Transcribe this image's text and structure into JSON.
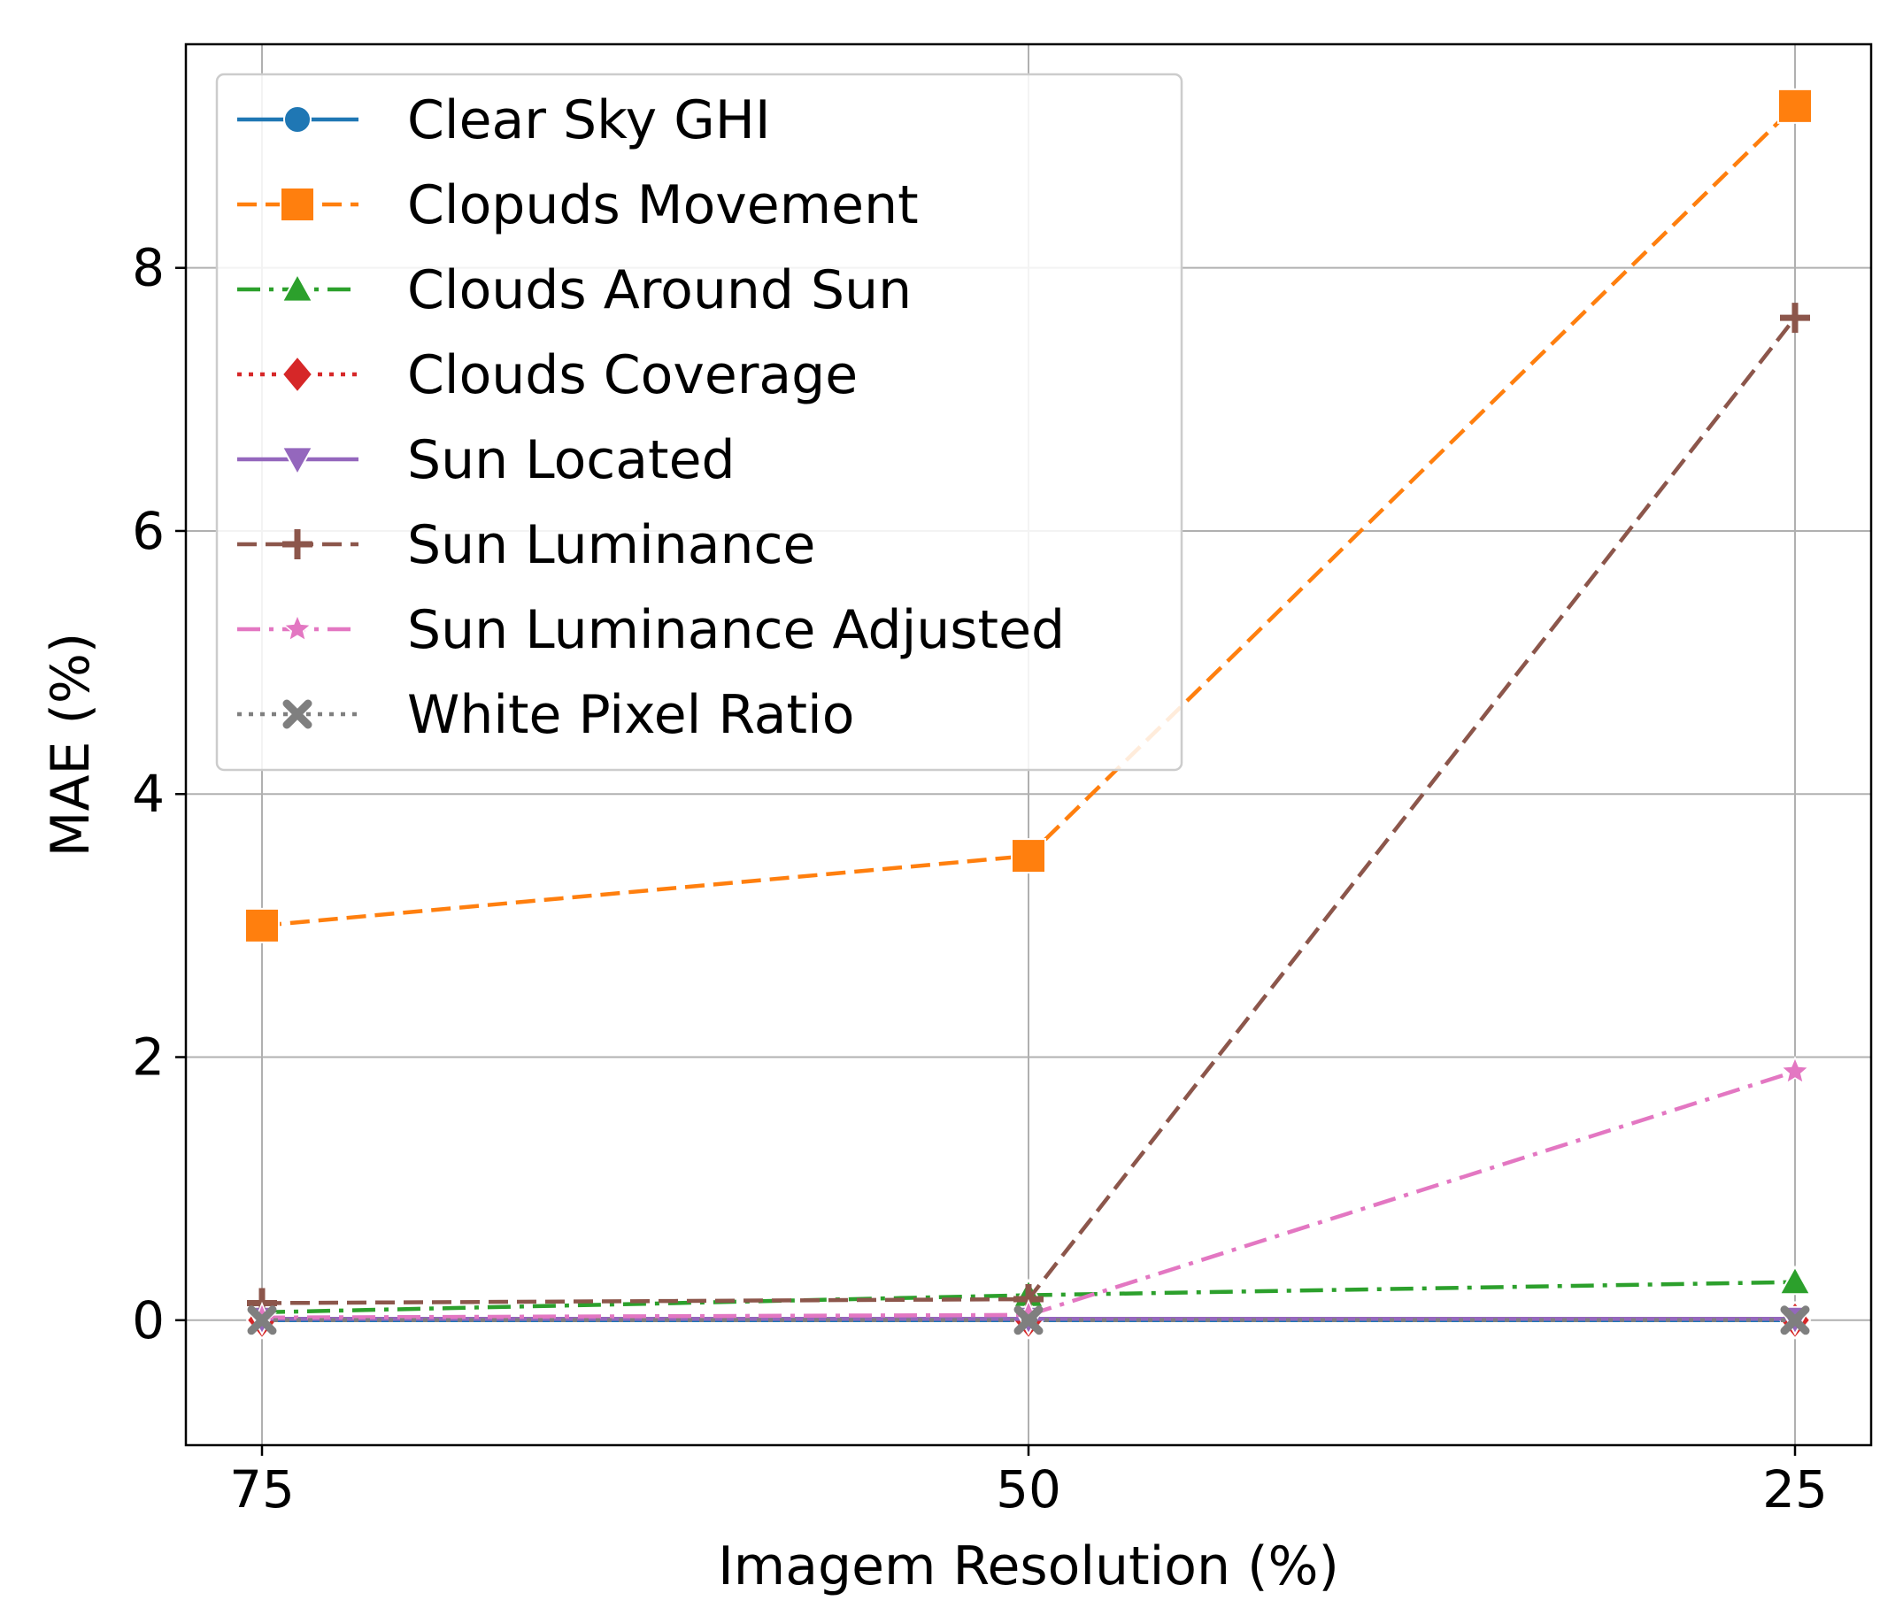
{
  "chart_data": {
    "type": "line",
    "title": "",
    "xlabel": "Imagem Resolution (%)",
    "ylabel": "MAE (%)",
    "categories": [
      "75",
      "50",
      "25"
    ],
    "ylim": [
      -0.95,
      9.7
    ],
    "yticks": [
      0,
      2,
      4,
      6,
      8
    ],
    "grid": true,
    "legend_position": "top-left",
    "series": [
      {
        "name": "Clear Sky GHI",
        "values": [
          0.0,
          0.0,
          0.0
        ],
        "color": "#1f77b4",
        "marker": "circle",
        "linestyle": "solid"
      },
      {
        "name": "Clopuds Movement",
        "values": [
          3.0,
          3.53,
          9.23
        ],
        "color": "#ff7f0e",
        "marker": "square",
        "linestyle": "dashed"
      },
      {
        "name": "Clouds Around Sun",
        "values": [
          0.06,
          0.19,
          0.29
        ],
        "color": "#2ca02c",
        "marker": "triangle-up",
        "linestyle": "dashdot"
      },
      {
        "name": "Clouds Coverage",
        "values": [
          0.0,
          0.0,
          0.0
        ],
        "color": "#d62728",
        "marker": "diamond",
        "linestyle": "dotted"
      },
      {
        "name": "Sun Located",
        "values": [
          0.01,
          0.01,
          0.01
        ],
        "color": "#9467bd",
        "marker": "triangle-down",
        "linestyle": "solid"
      },
      {
        "name": "Sun Luminance",
        "values": [
          0.13,
          0.16,
          7.62
        ],
        "color": "#8c564b",
        "marker": "plus",
        "linestyle": "dashed"
      },
      {
        "name": "Sun Luminance Adjusted",
        "values": [
          0.02,
          0.04,
          1.89
        ],
        "color": "#e377c2",
        "marker": "star",
        "linestyle": "dashdot"
      },
      {
        "name": "White Pixel Ratio",
        "values": [
          0.0,
          0.0,
          0.0
        ],
        "color": "#7f7f7f",
        "marker": "x",
        "linestyle": "dotted"
      }
    ]
  }
}
